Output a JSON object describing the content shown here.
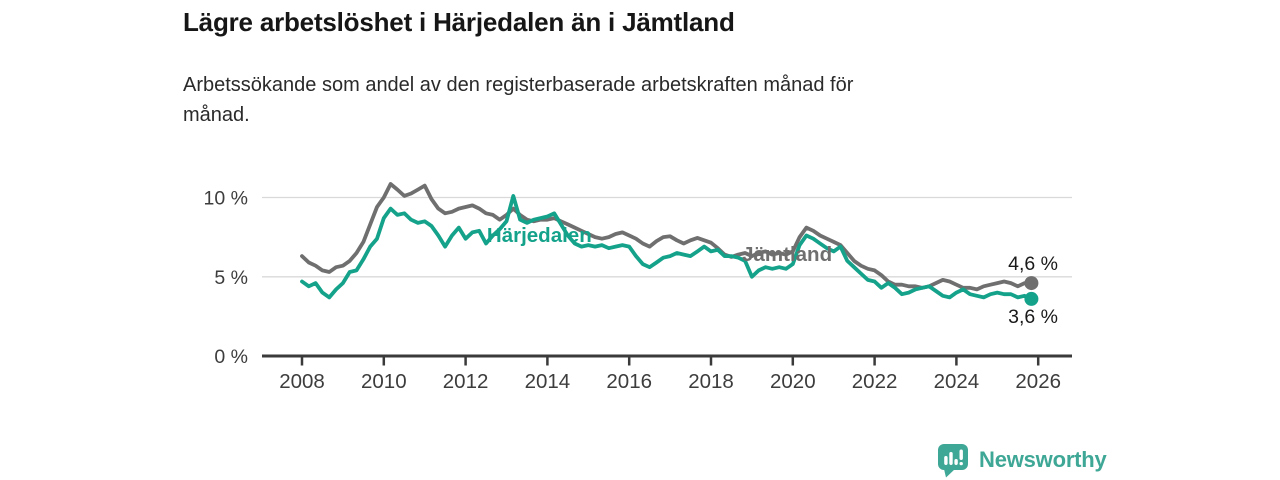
{
  "footer": {
    "brand": "Newsworthy",
    "brand_color": "#3FA796"
  },
  "chart_data": {
    "type": "line",
    "title": "Lägre arbetslöshet i Härjedalen än i Jämtland",
    "subtitle": "Arbetssökande som andel av den registerbaserade arbetskraften månad för månad.",
    "unit": "%",
    "grid": true,
    "legend_position": "inline-labels",
    "x": {
      "start": {
        "year": 2008,
        "month": 1
      },
      "end": {
        "year": 2025,
        "month": 11
      },
      "step_months": 2,
      "ticks": [
        {
          "year": 2008,
          "label": "2008"
        },
        {
          "year": 2010,
          "label": "2010"
        },
        {
          "year": 2012,
          "label": "2012"
        },
        {
          "year": 2014,
          "label": "2014"
        },
        {
          "year": 2016,
          "label": "2016"
        },
        {
          "year": 2018,
          "label": "2018"
        },
        {
          "year": 2020,
          "label": "2020"
        },
        {
          "year": 2022,
          "label": "2022"
        },
        {
          "year": 2024,
          "label": "2024"
        },
        {
          "year": 2026,
          "label": "2026"
        }
      ]
    },
    "y": {
      "min": 0,
      "max": 11.5,
      "ticks": [
        {
          "value": 0,
          "label": "0 %"
        },
        {
          "value": 5,
          "label": "5 %"
        },
        {
          "value": 10,
          "label": "10 %"
        }
      ]
    },
    "series": [
      {
        "id": "jamtland",
        "name": "Jämtland",
        "color": "#6F6F6F",
        "end_dot": true,
        "end_value": 4.6,
        "end_label": "4,6 %",
        "end_label_placement": "above",
        "values": [
          6.3,
          5.9,
          5.7,
          5.4,
          5.3,
          5.6,
          5.7,
          6.0,
          6.5,
          7.2,
          8.3,
          9.4,
          10.0,
          10.85,
          10.5,
          10.1,
          10.25,
          10.5,
          10.75,
          9.9,
          9.3,
          9.0,
          9.1,
          9.3,
          9.4,
          9.5,
          9.3,
          9.0,
          8.9,
          8.6,
          8.9,
          9.3,
          8.9,
          8.6,
          8.5,
          8.6,
          8.6,
          8.7,
          8.5,
          8.3,
          8.1,
          7.9,
          7.7,
          7.5,
          7.4,
          7.5,
          7.7,
          7.8,
          7.6,
          7.4,
          7.1,
          6.9,
          7.25,
          7.5,
          7.55,
          7.3,
          7.1,
          7.3,
          7.45,
          7.3,
          7.15,
          6.8,
          6.4,
          6.25,
          6.4,
          6.5,
          6.3,
          6.5,
          6.6,
          6.4,
          6.5,
          6.4,
          6.6,
          7.5,
          8.1,
          7.9,
          7.6,
          7.4,
          7.2,
          7.0,
          6.5,
          6.0,
          5.7,
          5.5,
          5.4,
          5.1,
          4.7,
          4.5,
          4.5,
          4.4,
          4.4,
          4.3,
          4.4,
          4.6,
          4.8,
          4.7,
          4.5,
          4.3,
          4.3,
          4.2,
          4.4,
          4.5,
          4.6,
          4.7,
          4.6,
          4.4,
          4.6,
          4.6
        ]
      },
      {
        "id": "harjedalen",
        "name": "Härjedalen",
        "color": "#14A28B",
        "end_dot": true,
        "end_value": 3.6,
        "end_label": "3,6 %",
        "end_label_placement": "below",
        "values": [
          4.7,
          4.4,
          4.6,
          4.0,
          3.7,
          4.2,
          4.6,
          5.3,
          5.4,
          6.1,
          6.9,
          7.4,
          8.7,
          9.3,
          8.9,
          9.0,
          8.6,
          8.4,
          8.5,
          8.2,
          7.6,
          6.9,
          7.6,
          8.1,
          7.4,
          7.8,
          7.9,
          7.1,
          7.6,
          8.0,
          8.5,
          10.1,
          8.6,
          8.4,
          8.6,
          8.7,
          8.8,
          9.0,
          8.3,
          7.6,
          7.1,
          6.9,
          7.0,
          6.9,
          7.0,
          6.8,
          6.9,
          7.0,
          6.9,
          6.3,
          5.8,
          5.6,
          5.9,
          6.2,
          6.3,
          6.5,
          6.4,
          6.3,
          6.6,
          6.9,
          6.6,
          6.7,
          6.3,
          6.3,
          6.2,
          6.0,
          5.0,
          5.4,
          5.6,
          5.5,
          5.6,
          5.5,
          5.8,
          7.0,
          7.6,
          7.4,
          7.1,
          6.8,
          6.6,
          6.9,
          6.0,
          5.6,
          5.2,
          4.8,
          4.7,
          4.3,
          4.6,
          4.3,
          3.9,
          4.0,
          4.2,
          4.3,
          4.4,
          4.1,
          3.8,
          3.7,
          4.0,
          4.2,
          3.9,
          3.8,
          3.7,
          3.9,
          4.0,
          3.9,
          3.9,
          3.7,
          3.8,
          3.6
        ]
      }
    ],
    "series_labels": [
      {
        "for": "harjedalen",
        "text": "Härjedalen",
        "year": 2012.52,
        "value": 7.2,
        "color": "#14A28B"
      },
      {
        "for": "jamtland",
        "text": "Jämtland",
        "year": 2018.76,
        "value": 6.0,
        "color": "#6F6F6F"
      }
    ]
  }
}
